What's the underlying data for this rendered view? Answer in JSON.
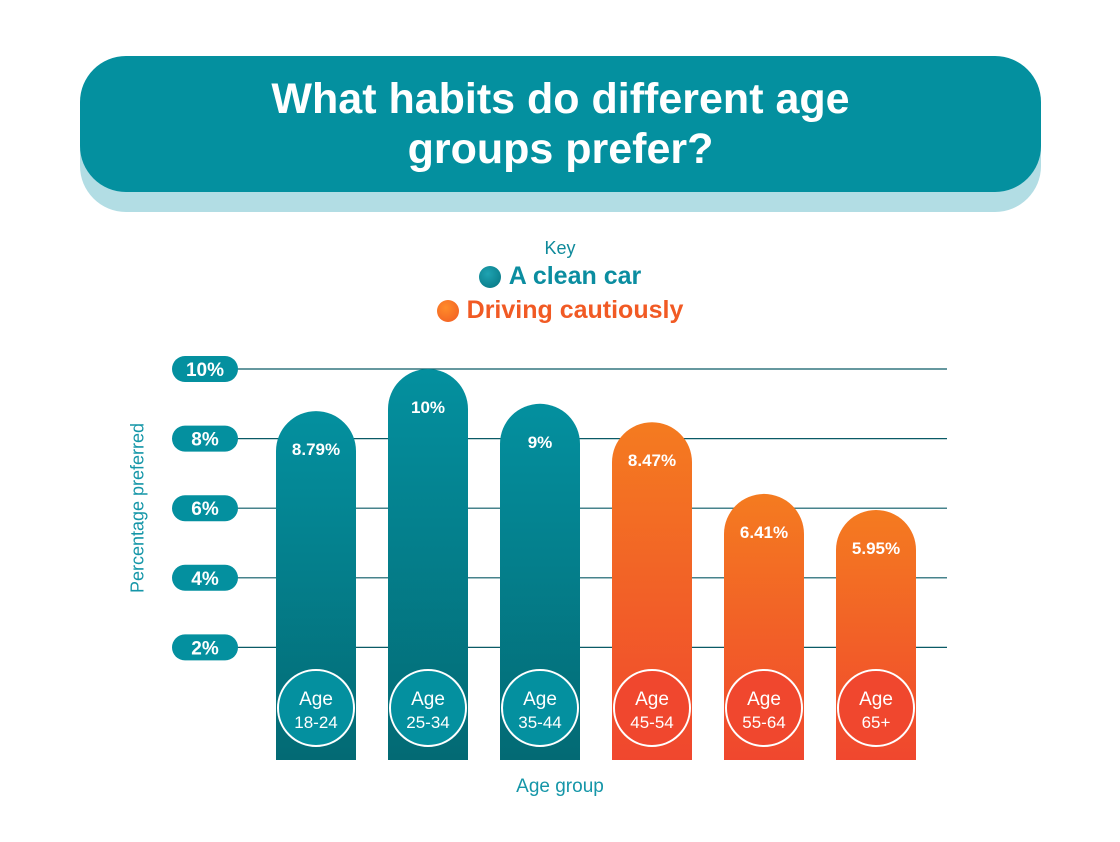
{
  "title": "What habits do different age groups prefer?",
  "key": {
    "title": "Key",
    "items": [
      {
        "label": "A clean car",
        "color": "#04909f"
      },
      {
        "label": "Driving cautiously",
        "color": "#f15a24"
      }
    ]
  },
  "chart_data": {
    "type": "bar",
    "title": "What habits do different age groups prefer?",
    "xlabel": "Age group",
    "ylabel": "Percentage preferred",
    "ylim": [
      0,
      10
    ],
    "yticks": [
      "2%",
      "4%",
      "6%",
      "8%",
      "10%"
    ],
    "categories": [
      [
        "Age",
        "18-24"
      ],
      [
        "Age",
        "25-34"
      ],
      [
        "Age",
        "35-44"
      ],
      [
        "Age",
        "45-54"
      ],
      [
        "Age",
        "55-64"
      ],
      [
        "Age",
        "65+"
      ]
    ],
    "values": [
      8.79,
      10,
      9,
      8.47,
      6.41,
      5.95
    ],
    "labels": [
      "8.79%",
      "10%",
      "9%",
      "8.47%",
      "6.41%",
      "5.95%"
    ],
    "series_of_bar": [
      "A clean car",
      "A clean car",
      "A clean car",
      "Driving cautiously",
      "Driving cautiously",
      "Driving cautiously"
    ]
  }
}
